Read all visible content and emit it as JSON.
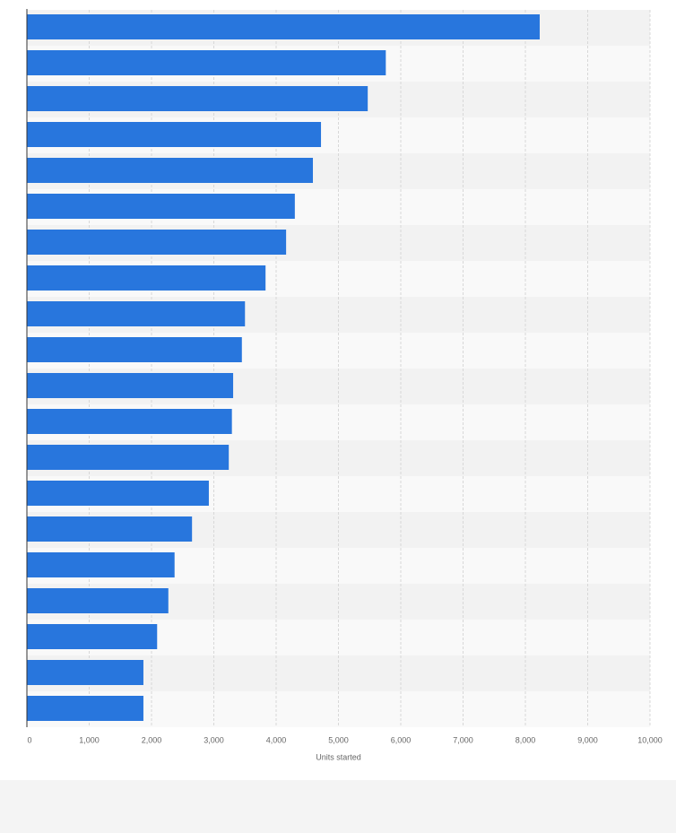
{
  "chart_data": {
    "type": "bar",
    "orientation": "horizontal",
    "xlabel": "Units started",
    "categories": [
      null,
      null,
      null,
      null,
      null,
      null,
      null,
      null,
      null,
      null,
      null,
      null,
      null,
      null,
      null,
      null,
      null,
      null,
      null,
      null
    ],
    "values": [
      8230,
      5760,
      5470,
      4720,
      4590,
      4300,
      4160,
      3830,
      3500,
      3450,
      3310,
      3290,
      3240,
      2920,
      2650,
      2370,
      2270,
      2090,
      1870,
      1870
    ],
    "color": "#2876dd",
    "xlim": [
      0,
      10000
    ],
    "xticks": [
      0,
      {
        "value": 1000,
        "label": "1,000"
      },
      {
        "value": 2000,
        "label": "2,000"
      },
      {
        "value": 3000,
        "label": "3,000"
      },
      {
        "value": 4000,
        "label": "4,000"
      },
      {
        "value": 5000,
        "label": "5,000"
      },
      {
        "value": 6000,
        "label": "6,000"
      },
      {
        "value": 7000,
        "label": "7,000"
      },
      {
        "value": 8000,
        "label": "8,000"
      },
      {
        "value": 9000,
        "label": "9,000"
      },
      {
        "value": 10000,
        "label": "10,000"
      }
    ],
    "grid": true
  }
}
